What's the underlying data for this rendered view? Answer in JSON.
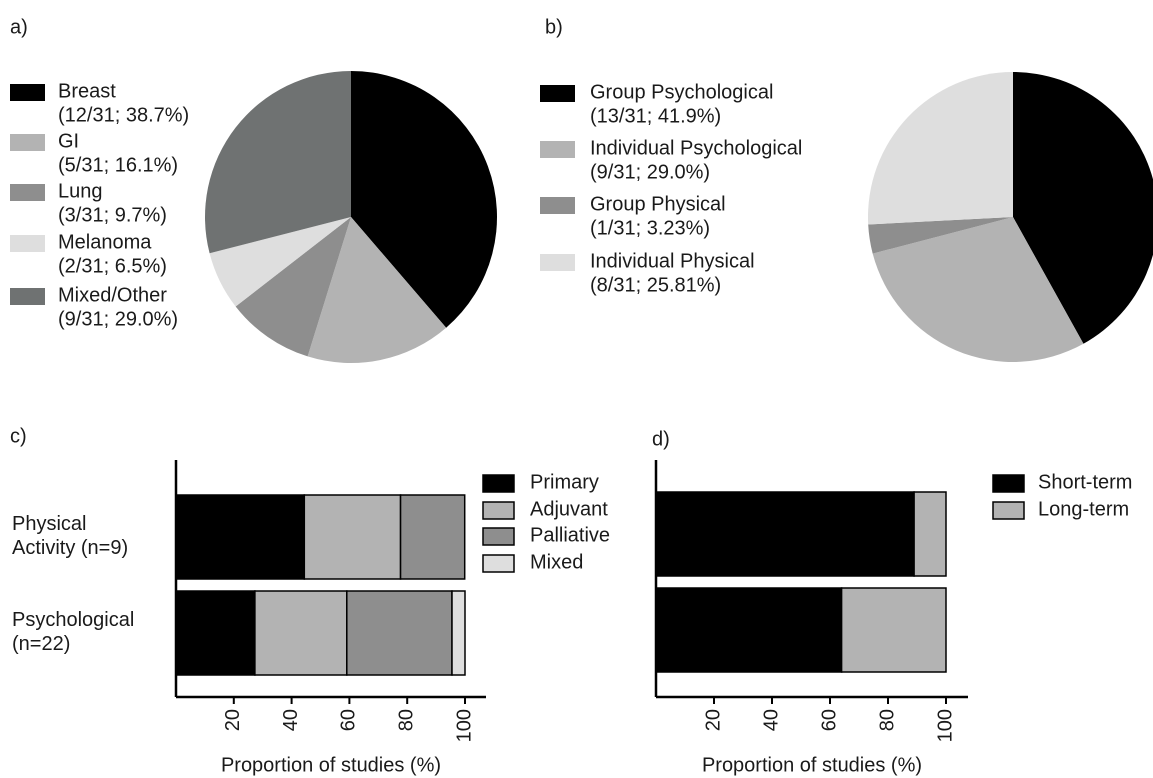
{
  "chart_data": [
    {
      "type": "pie",
      "label": "a)",
      "categories": [
        "Breast",
        "GI",
        "Lung",
        "Melanoma",
        "Mixed/Other"
      ],
      "values": [
        38.7,
        16.1,
        9.7,
        6.5,
        29.0
      ],
      "value_labels": [
        "(12/31; 38.7%)",
        "(5/31; 16.1%)",
        "(3/31; 9.7%)",
        "(2/31; 6.5%)",
        "(9/31; 29.0%)"
      ],
      "colors": [
        "#000000",
        "#b3b3b3",
        "#8e8e8e",
        "#dedede",
        "#6f7272"
      ]
    },
    {
      "type": "pie",
      "label": "b)",
      "categories": [
        "Group Psychological",
        "Individual Psychological",
        "Group Physical",
        "Individual Physical"
      ],
      "values": [
        41.9,
        29.0,
        3.23,
        25.81
      ],
      "value_labels": [
        "(13/31; 41.9%)",
        "(9/31; 29.0%)",
        "(1/31; 3.23%)",
        "(8/31; 25.81%)"
      ],
      "colors": [
        "#000000",
        "#b3b3b3",
        "#8e8e8e",
        "#dedede"
      ]
    },
    {
      "type": "bar",
      "label": "c)",
      "orientation": "horizontal",
      "stacked": true,
      "categories": [
        "Physical Activity (n=9)",
        "Psychological (n=22)"
      ],
      "series": [
        {
          "name": "Primary",
          "color": "#000000",
          "values": [
            44.4,
            27.3
          ]
        },
        {
          "name": "Adjuvant",
          "color": "#b3b3b3",
          "values": [
            33.3,
            31.8
          ]
        },
        {
          "name": "Palliative",
          "color": "#8e8e8e",
          "values": [
            22.2,
            36.4
          ]
        },
        {
          "name": "Mixed",
          "color": "#dedede",
          "values": [
            0,
            4.5
          ]
        }
      ],
      "xlim": [
        0,
        100
      ],
      "xticks": [
        20,
        40,
        60,
        80,
        100
      ],
      "x_label": "Proportion of studies (%)"
    },
    {
      "type": "bar",
      "label": "d)",
      "orientation": "horizontal",
      "stacked": true,
      "categories": [
        null,
        null
      ],
      "series": [
        {
          "name": "Short-term",
          "color": "#000000",
          "values": [
            89,
            64
          ]
        },
        {
          "name": "Long-term",
          "color": "#b3b3b3",
          "values": [
            11,
            36
          ]
        }
      ],
      "xlim": [
        0,
        100
      ],
      "xticks": [
        20,
        40,
        60,
        80,
        100
      ],
      "x_label": "Proportion of studies (%)"
    }
  ]
}
